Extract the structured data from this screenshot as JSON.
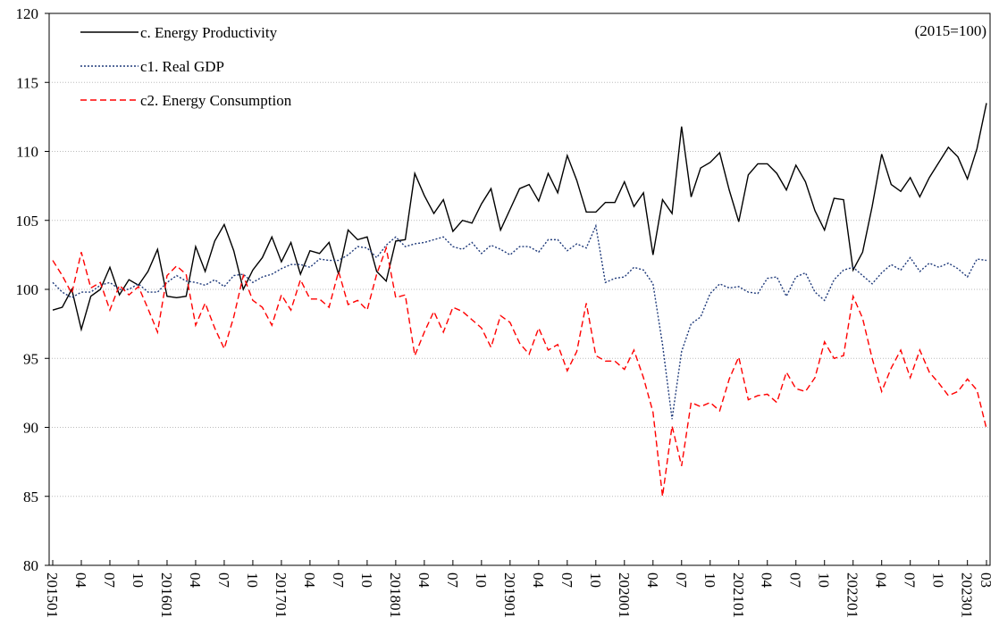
{
  "chart_data": {
    "type": "line",
    "annotation": "(2015=100)",
    "ylim": [
      80,
      120
    ],
    "yticks": [
      80,
      85,
      90,
      95,
      100,
      105,
      110,
      115,
      120
    ],
    "grid": true,
    "legend": "upper left",
    "categories": [
      "201501",
      null,
      null,
      "04",
      null,
      null,
      "07",
      null,
      null,
      "10",
      null,
      null,
      "201601",
      null,
      null,
      "04",
      null,
      null,
      "07",
      null,
      null,
      "10",
      null,
      null,
      "201701",
      null,
      null,
      "04",
      null,
      null,
      "07",
      null,
      null,
      "10",
      null,
      null,
      "201801",
      null,
      null,
      "04",
      null,
      null,
      "07",
      null,
      null,
      "10",
      null,
      null,
      "201901",
      null,
      null,
      "04",
      null,
      null,
      "07",
      null,
      null,
      "10",
      null,
      null,
      "202001",
      null,
      null,
      "04",
      null,
      null,
      "07",
      null,
      null,
      "10",
      null,
      null,
      "202101",
      null,
      null,
      "04",
      null,
      null,
      "07",
      null,
      null,
      "10",
      null,
      null,
      "202201",
      null,
      null,
      "04",
      null,
      null,
      "07",
      null,
      null,
      "10",
      null,
      null,
      "202301",
      null,
      "03"
    ],
    "series": [
      {
        "name": "c. Energy Productivity",
        "color": "#000000",
        "style": "solid",
        "values": [
          98.5,
          98.7,
          100.0,
          97.1,
          99.5,
          100.0,
          101.6,
          99.6,
          100.7,
          100.3,
          101.3,
          102.9,
          99.5,
          99.4,
          99.5,
          103.1,
          101.3,
          103.5,
          104.7,
          102.8,
          100.0,
          101.4,
          102.3,
          103.8,
          102.0,
          103.4,
          101.1,
          102.8,
          102.6,
          103.4,
          101.1,
          104.3,
          103.6,
          103.8,
          101.3,
          100.6,
          103.5,
          103.6,
          108.4,
          106.8,
          105.5,
          106.5,
          104.2,
          105.0,
          104.8,
          106.2,
          107.3,
          104.3,
          105.8,
          107.3,
          107.6,
          106.4,
          108.4,
          107.0,
          109.7,
          107.9,
          105.6,
          105.6,
          106.3,
          106.3,
          107.8,
          106.0,
          107.0,
          102.5,
          106.5,
          105.5,
          111.8,
          106.7,
          108.8,
          109.2,
          109.9,
          107.2,
          104.9,
          108.3,
          109.1,
          109.1,
          108.4,
          107.2,
          109.0,
          107.8,
          105.7,
          104.3,
          106.6,
          106.5,
          101.4,
          102.7,
          106.0,
          109.8,
          107.6,
          107.1,
          108.1,
          106.7,
          108.1,
          109.2,
          110.3,
          109.6,
          108.0,
          110.2,
          113.5
        ]
      },
      {
        "name": "c1. Real GDP",
        "color": "#1f3a7a",
        "style": "dotted",
        "values": [
          100.5,
          99.8,
          99.4,
          99.8,
          99.8,
          100.3,
          100.5,
          100.0,
          100.0,
          100.4,
          99.8,
          99.8,
          100.5,
          101.0,
          100.6,
          100.5,
          100.3,
          100.7,
          100.2,
          101.0,
          101.1,
          100.5,
          100.9,
          101.1,
          101.5,
          101.8,
          101.8,
          101.6,
          102.2,
          102.1,
          102.1,
          102.5,
          103.1,
          103.0,
          102.3,
          103.2,
          103.8,
          103.1,
          103.3,
          103.4,
          103.6,
          103.8,
          103.1,
          102.9,
          103.4,
          102.6,
          103.2,
          102.9,
          102.5,
          103.1,
          103.1,
          102.7,
          103.6,
          103.6,
          102.8,
          103.3,
          103.0,
          104.6,
          100.5,
          100.8,
          100.9,
          101.6,
          101.4,
          100.4,
          96.0,
          90.6,
          95.5,
          97.5,
          98.0,
          99.7,
          100.4,
          100.1,
          100.2,
          99.8,
          99.7,
          100.8,
          100.9,
          99.5,
          100.9,
          101.2,
          99.8,
          99.2,
          100.7,
          101.4,
          101.6,
          101.0,
          100.4,
          101.2,
          101.8,
          101.4,
          102.3,
          101.3,
          101.9,
          101.6,
          101.9,
          101.5,
          100.9,
          102.2,
          102.1
        ]
      },
      {
        "name": "c2. Energy Consumption",
        "color": "#ff0000",
        "style": "dashed",
        "values": [
          102.1,
          101.0,
          99.7,
          102.7,
          100.1,
          100.5,
          98.5,
          100.3,
          99.6,
          100.2,
          98.6,
          96.9,
          101.0,
          101.7,
          101.1,
          97.4,
          99.0,
          97.2,
          95.7,
          98.0,
          101.0,
          99.2,
          98.7,
          97.4,
          99.6,
          98.5,
          100.7,
          99.3,
          99.3,
          98.7,
          101.3,
          98.9,
          99.2,
          98.5,
          101.1,
          103.0,
          99.4,
          99.6,
          95.2,
          96.9,
          98.4,
          96.9,
          98.7,
          98.4,
          97.8,
          97.2,
          95.8,
          98.1,
          97.6,
          96.1,
          95.3,
          97.2,
          95.6,
          96.0,
          94.1,
          95.5,
          99.0,
          95.2,
          94.8,
          94.8,
          94.2,
          95.6,
          93.6,
          91.1,
          85.0,
          90.1,
          87.2,
          91.8,
          91.5,
          91.8,
          91.2,
          93.5,
          95.1,
          92.0,
          92.3,
          92.4,
          91.8,
          94.0,
          92.8,
          92.6,
          93.6,
          96.2,
          95.0,
          95.2,
          99.5,
          97.9,
          95.0,
          92.6,
          94.3,
          95.6,
          93.6,
          95.6,
          94.0,
          93.2,
          92.3,
          92.6,
          93.5,
          92.7,
          89.9
        ]
      }
    ]
  }
}
